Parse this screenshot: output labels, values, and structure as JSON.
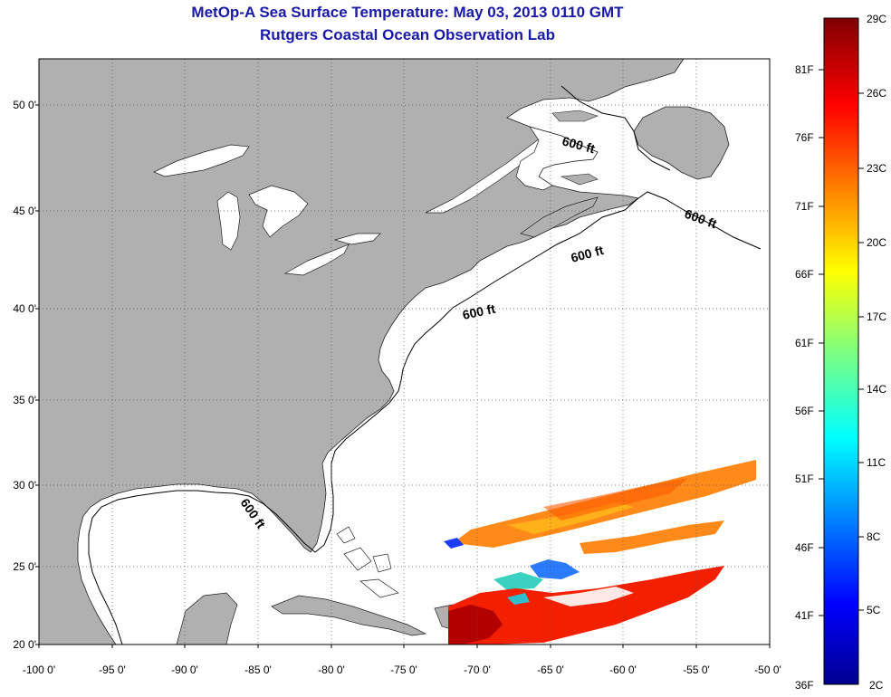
{
  "header": {
    "title": "MetOp-A Sea Surface Temperature:  May 03, 2013 0110 GMT",
    "subtitle": "Rutgers Coastal Ocean Observation Lab"
  },
  "map": {
    "lat_labels": [
      "50 0'",
      "45 0'",
      "40 0'",
      "35 0'",
      "30 0'",
      "25 0'",
      "20 0'"
    ],
    "lon_labels": [
      "-100 0'",
      "-95 0'",
      "-90 0'",
      "-85 0'",
      "-80 0'",
      "-75 0'",
      "-70 0'",
      "-65 0'",
      "-60 0'",
      "-55 0'",
      "-50 0'"
    ],
    "contour_labels": [
      "600 ft",
      "600 ft",
      "600 ft",
      "600 ft",
      "600 ft"
    ],
    "colors": {
      "land": "#b0b0b0",
      "ocean": "#ffffff",
      "grid": "#555555"
    }
  },
  "colorbar": {
    "celsius": [
      "29C",
      "26C",
      "23C",
      "20C",
      "17C",
      "14C",
      "11C",
      "8C",
      "5C",
      "2C"
    ],
    "fahrenheit": [
      "81F",
      "76F",
      "71F",
      "66F",
      "61F",
      "56F",
      "51F",
      "46F",
      "41F",
      "36F"
    ],
    "colormap": "jet"
  }
}
